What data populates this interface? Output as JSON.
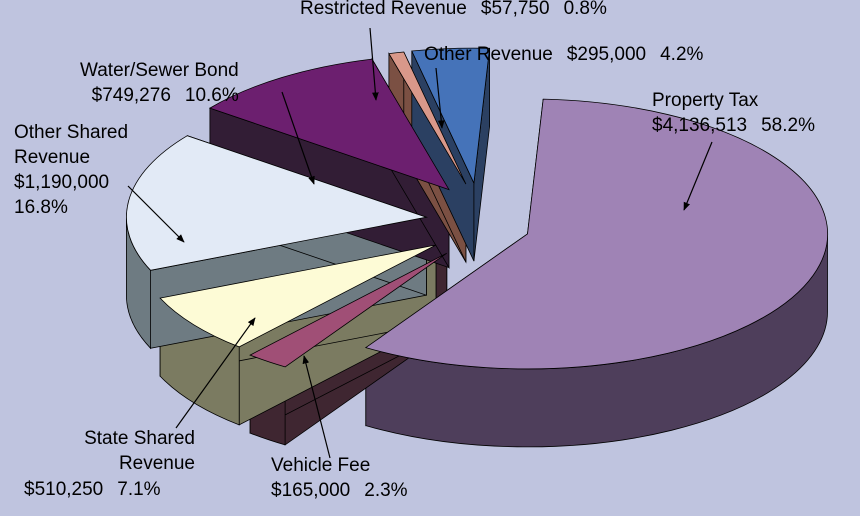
{
  "chart_data": {
    "type": "pie3d",
    "categories": [
      "Property Tax",
      "Vehicle Fee",
      "State Shared Revenue",
      "Other Shared Revenue",
      "Water/Sewer Bond",
      "Restricted Revenue",
      "Other Revenue"
    ],
    "values": [
      4136513,
      165000,
      510250,
      1190000,
      749276,
      57750,
      295000
    ],
    "value_labels": [
      "$4,136,513",
      "$165,000",
      "$510,250",
      "$1,190,000",
      "$749,276",
      "$57,750",
      "$295,000"
    ],
    "shares": [
      58.2,
      2.3,
      7.1,
      16.8,
      10.6,
      0.8,
      4.2
    ],
    "share_labels": [
      "58.2%",
      "2.3%",
      "7.1%",
      "16.8%",
      "10.6%",
      "0.8%",
      "4.2%"
    ],
    "colors": [
      "#9f83b5",
      "#a04f76",
      "#fdfbd6",
      "#e2eaf6",
      "#6c1f6f",
      "#d9988a",
      "#4573b9"
    ],
    "side_colors": [
      "#4e3e5b",
      "#3f2631",
      "#7b7b61",
      "#6e7b82",
      "#321d35",
      "#7b5043",
      "#2b4062"
    ]
  }
}
